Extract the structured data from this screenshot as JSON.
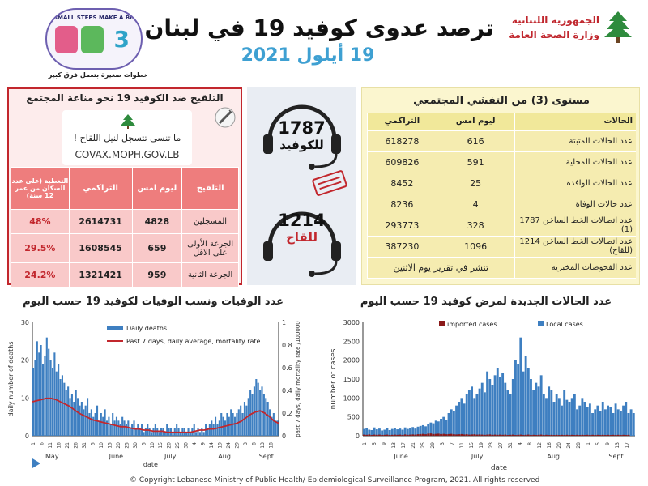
{
  "header": {
    "title": "ترصد عدوى كوفيد 19 في لبنان",
    "date": "19 أيلول 2021",
    "ministry_line1": "الجمهورية اللبنانية",
    "ministry_line2": "وزارة الصحة العامة",
    "campaign_top": "SMALL STEPS MAKE A BIG IMPACT",
    "campaign_number": "3",
    "campaign_bottom": "خطوات صغيرة بتعمل فرق كبير",
    "campaign_icon_colors": [
      "#e35d8a",
      "#5cb85c",
      "#3d7fc4"
    ]
  },
  "vaccination": {
    "title": "التلقيح ضد الكوفيد 19  نحو مناعة المجتمع",
    "reminder": "ما تنسى تتسجل لنيل اللقاح !",
    "url": "COVAX.MOPH.GOV.LB",
    "headers": [
      "التلقيح",
      "ليوم امس",
      "التراكمي",
      "التغطية (على عدد السكان من عمر 12 سنة)"
    ],
    "rows": [
      {
        "label": "المسجلين",
        "yesterday": "4828",
        "cumulative": "2614731",
        "coverage": "48%"
      },
      {
        "label": "الجرعة الأولى على الاقل",
        "yesterday": "659",
        "cumulative": "1608545",
        "coverage": "29.5%"
      },
      {
        "label": "الجرعة الثانية",
        "yesterday": "959",
        "cumulative": "1321421",
        "coverage": "24.2%"
      }
    ]
  },
  "hotlines": [
    {
      "number": "1787",
      "label": "للكوفيد",
      "label_color": "#111111"
    },
    {
      "number": "1214",
      "label": "للقاح",
      "label_color": "#c2272d"
    }
  ],
  "stats": {
    "title": "مستوى (3) من التفشي المجتمعي",
    "headers": [
      "الحالات",
      "ليوم امس",
      "التراكمي"
    ],
    "rows": [
      {
        "label": "عدد الحالات المثبتة",
        "yesterday": "616",
        "cumulative": "618278"
      },
      {
        "label": "عدد الحالات المحلية",
        "yesterday": "591",
        "cumulative": "609826"
      },
      {
        "label": "عدد الحالات الوافدة",
        "yesterday": "25",
        "cumulative": "8452"
      },
      {
        "label": "عدد حالات الوفاة",
        "yesterday": "4",
        "cumulative": "8236"
      },
      {
        "label": "عدد اتصالات الخط الساخن 1787  (1)",
        "yesterday": "328",
        "cumulative": "293773"
      },
      {
        "label": "عدد اتصالات الخط الساخن 1214 (للقاح)",
        "yesterday": "1096",
        "cumulative": "387230"
      },
      {
        "label": "عدد الفحوصات المخبرية",
        "yesterday": "تنشر في تقرير يوم الاثنين",
        "cumulative": ""
      }
    ]
  },
  "charts_titles": {
    "deaths": "عدد الوفيات ونسب الوفيات لكوفيد 19 حسب اليوم",
    "cases": "عدد الحالات الجديدة لمرض كوفيد 19 حسب اليوم"
  },
  "chart_data": [
    {
      "type": "bar",
      "ylabel": "daily number of deaths",
      "y2label": "past 7 days, daily mortality rate /100000",
      "xlabel": "date",
      "ylim": [
        0,
        30
      ],
      "y2lim": [
        0,
        1
      ],
      "yticks": [
        0,
        10,
        20,
        30
      ],
      "y2ticks": [
        "0",
        "0.2",
        "0.4",
        "0.6",
        "0.8",
        "1"
      ],
      "months": [
        "May",
        "June",
        "July",
        "Aug",
        "Sept"
      ],
      "day_ticks": [
        "1",
        "6",
        "11",
        "16",
        "21",
        "26",
        "31",
        "5",
        "10",
        "15",
        "20",
        "25",
        "30",
        "5",
        "10",
        "15",
        "20",
        "25",
        "30",
        "4",
        "9",
        "14",
        "19",
        "24",
        "29",
        "3",
        "8",
        "13",
        "18"
      ],
      "legend": [
        "Daily deaths",
        "Past 7 days, daily average, mortality rate"
      ],
      "colors": {
        "bars": "#3e7fc1",
        "line": "#c2272d"
      },
      "series": [
        {
          "name": "Daily deaths",
          "values": [
            18,
            20,
            25,
            22,
            24,
            19,
            21,
            26,
            23,
            20,
            18,
            22,
            17,
            19,
            15,
            16,
            14,
            12,
            13,
            10,
            11,
            9,
            12,
            10,
            8,
            9,
            7,
            8,
            10,
            6,
            7,
            5,
            6,
            8,
            4,
            6,
            5,
            7,
            4,
            5,
            3,
            6,
            4,
            5,
            4,
            3,
            5,
            4,
            3,
            4,
            2,
            3,
            4,
            2,
            3,
            2,
            3,
            1,
            2,
            3,
            2,
            1,
            2,
            3,
            2,
            1,
            2,
            2,
            1,
            3,
            2,
            2,
            1,
            2,
            3,
            2,
            1,
            2,
            2,
            1,
            2,
            1,
            2,
            3,
            1,
            2,
            1,
            2,
            1,
            3,
            2,
            3,
            4,
            3,
            5,
            3,
            4,
            6,
            5,
            4,
            6,
            5,
            7,
            6,
            5,
            6,
            7,
            8,
            6,
            9,
            8,
            10,
            12,
            11,
            13,
            15,
            14,
            12,
            13,
            11,
            10,
            9,
            7,
            5,
            6,
            4,
            4
          ]
        },
        {
          "name": "Past 7 days, daily average, mortality rate",
          "values": [
            0.3,
            0.31,
            0.32,
            0.33,
            0.33,
            0.32,
            0.3,
            0.28,
            0.26,
            0.23,
            0.2,
            0.18,
            0.16,
            0.14,
            0.13,
            0.12,
            0.11,
            0.1,
            0.09,
            0.08,
            0.08,
            0.07,
            0.06,
            0.06,
            0.05,
            0.05,
            0.04,
            0.04,
            0.04,
            0.03,
            0.03,
            0.03,
            0.03,
            0.03,
            0.03,
            0.04,
            0.05,
            0.05,
            0.06,
            0.06,
            0.07,
            0.08,
            0.09,
            0.1,
            0.11,
            0.13,
            0.16,
            0.19,
            0.21,
            0.22,
            0.2,
            0.17,
            0.13,
            0.11
          ]
        }
      ]
    },
    {
      "type": "bar",
      "ylabel": "number of cases",
      "xlabel": "date",
      "ylim": [
        0,
        3000
      ],
      "yticks": [
        0,
        500,
        1000,
        1500,
        2000,
        2500,
        3000
      ],
      "months": [
        "June",
        "July",
        "Aug",
        "Sept"
      ],
      "day_ticks": [
        "1",
        "5",
        "9",
        "13",
        "17",
        "21",
        "25",
        "29",
        "3",
        "7",
        "11",
        "15",
        "19",
        "23",
        "27",
        "31",
        "4",
        "8",
        "12",
        "16",
        "20",
        "24",
        "28",
        "1",
        "5",
        "9",
        "13",
        "17"
      ],
      "legend": [
        "imported cases",
        "Local cases"
      ],
      "colors": {
        "local": "#3e7fc1",
        "imported": "#8b1a1a"
      },
      "series": [
        {
          "name": "Local cases",
          "values": [
            180,
            200,
            160,
            150,
            220,
            170,
            190,
            140,
            160,
            200,
            150,
            180,
            210,
            170,
            190,
            160,
            220,
            180,
            200,
            230,
            190,
            240,
            260,
            280,
            250,
            300,
            350,
            330,
            400,
            380,
            450,
            500,
            420,
            600,
            700,
            650,
            800,
            900,
            1000,
            850,
            1100,
            1200,
            1300,
            1000,
            1100,
            1250,
            1400,
            1150,
            1700,
            1500,
            1350,
            1600,
            1800,
            1550,
            1650,
            1400,
            1200,
            1100,
            1500,
            2000,
            1900,
            2600,
            1700,
            2100,
            1800,
            1500,
            1200,
            1400,
            1300,
            1600,
            1100,
            1000,
            1300,
            1200,
            900,
            1100,
            1000,
            800,
            1200,
            950,
            900,
            1000,
            1100,
            700,
            800,
            1000,
            900,
            750,
            850,
            600,
            700,
            800,
            650,
            900,
            700,
            800,
            750,
            600,
            850,
            700,
            650,
            800,
            900,
            600,
            700,
            600
          ]
        },
        {
          "name": "imported cases",
          "values": [
            30,
            25,
            35,
            20,
            30,
            25,
            30,
            20,
            25,
            30,
            20,
            25,
            30,
            25,
            30,
            20,
            35,
            25,
            30,
            35,
            30,
            40,
            45,
            50,
            40,
            55,
            60,
            45,
            50,
            55,
            45,
            50,
            40,
            45,
            50,
            40,
            35,
            40,
            45,
            35,
            40,
            30,
            35,
            40,
            30,
            35,
            30,
            25,
            30,
            35,
            25,
            30,
            25,
            30,
            25,
            30,
            20,
            25,
            30,
            20,
            25,
            30,
            20,
            25,
            30,
            20,
            25,
            20,
            25,
            30,
            20,
            25,
            20,
            25,
            20,
            25,
            20,
            25,
            20,
            25,
            20,
            25,
            20,
            25,
            20,
            25,
            20,
            25,
            20,
            25,
            20,
            25,
            20,
            25,
            20,
            25,
            20,
            25,
            20,
            25,
            20,
            25,
            20,
            25
          ]
        }
      ]
    }
  ],
  "footer": "© Copyright Lebanese Ministry of Public Health/ Epidemiological Surveillance Program, 2021. All rights reserved"
}
